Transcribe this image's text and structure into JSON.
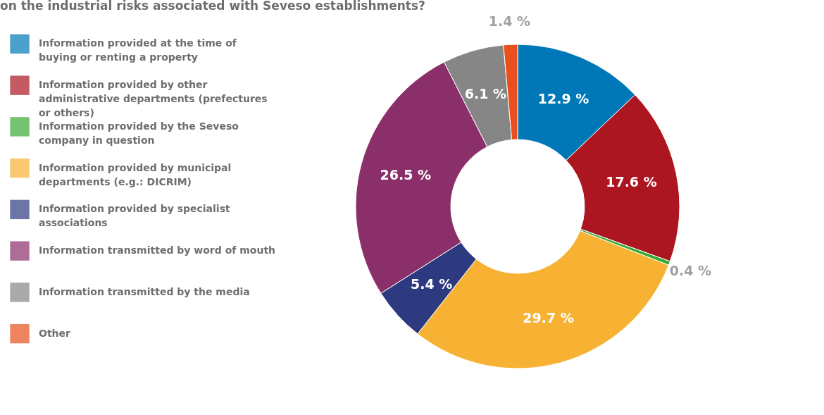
{
  "chart_data": {
    "type": "donut",
    "title": "on the industrial risks associated with Seveso establishments?",
    "categories": [
      "Information provided at the time of buying or renting a property",
      "Information provided by other administrative departments (prefectures or others)",
      "Information provided by the Seveso company in question",
      "Information provided by municipal departments (e.g.: DICRIM)",
      "Information provided by specialist associations",
      "Information transmitted by word of mouth",
      "Information transmitted by the media",
      "Other"
    ],
    "values": [
      12.9,
      17.6,
      0.4,
      29.7,
      5.4,
      26.5,
      6.1,
      1.4
    ],
    "colors": [
      "#0077b6",
      "#ac1620",
      "#3aaa35",
      "#f7b234",
      "#2e3a80",
      "#8b2f6b",
      "#868686",
      "#e8501e"
    ],
    "value_labels": [
      "12.9 %",
      "17.6 %",
      "0.4 %",
      "29.7 %",
      "5.4 %",
      "26.5 %",
      "6.1 %",
      "1.4 %"
    ],
    "legend": "left"
  }
}
